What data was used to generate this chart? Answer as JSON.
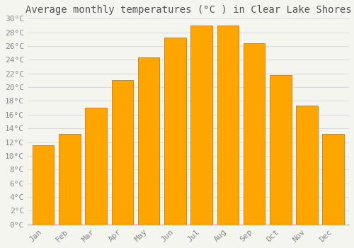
{
  "title": "Average monthly temperatures (°C ) in Clear Lake Shores",
  "months": [
    "Jan",
    "Feb",
    "Mar",
    "Apr",
    "May",
    "Jun",
    "Jul",
    "Aug",
    "Sep",
    "Oct",
    "Nov",
    "Dec"
  ],
  "values": [
    11.5,
    13.2,
    17.0,
    21.0,
    24.4,
    27.2,
    29.0,
    29.0,
    26.4,
    21.8,
    17.3,
    13.2
  ],
  "bar_color": "#FFA500",
  "bar_edge_color": "#E07800",
  "background_color": "#F5F5F0",
  "grid_color": "#DDDDDD",
  "ylim": [
    0,
    30
  ],
  "ytick_step": 2,
  "title_fontsize": 10,
  "tick_fontsize": 8,
  "tick_font": "monospace",
  "bar_width": 0.82
}
